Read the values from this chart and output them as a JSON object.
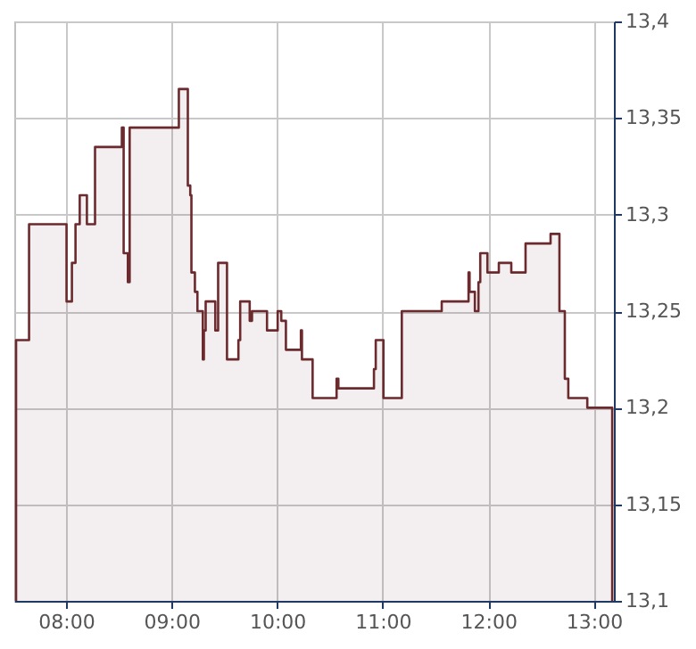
{
  "chart_data": {
    "type": "area",
    "x": [
      7.527,
      7.65,
      8.005,
      8.056,
      8.09,
      8.13,
      8.198,
      8.275,
      8.529,
      8.546,
      8.586,
      8.603,
      9.069,
      9.154,
      9.177,
      9.188,
      9.221,
      9.245,
      9.296,
      9.306,
      9.323,
      9.414,
      9.441,
      9.525,
      9.633,
      9.65,
      9.74,
      9.762,
      9.904,
      10.005,
      10.039,
      10.083,
      10.225,
      10.235,
      10.336,
      10.563,
      10.58,
      10.917,
      10.934,
      11.007,
      11.181,
      11.559,
      11.813,
      11.823,
      11.873,
      11.907,
      11.924,
      11.992,
      12.1,
      12.218,
      12.353,
      12.59,
      12.674,
      12.725,
      12.758,
      12.938,
      13.174
    ],
    "series": [
      {
        "color": "#6b2a2e",
        "values": [
          13.235,
          13.295,
          13.255,
          13.275,
          13.295,
          13.31,
          13.295,
          13.335,
          13.345,
          13.28,
          13.265,
          13.345,
          13.365,
          13.315,
          13.31,
          13.27,
          13.26,
          13.25,
          13.225,
          13.24,
          13.255,
          13.24,
          13.275,
          13.225,
          13.235,
          13.255,
          13.245,
          13.25,
          13.24,
          13.25,
          13.245,
          13.23,
          13.24,
          13.225,
          13.205,
          13.215,
          13.21,
          13.22,
          13.235,
          13.205,
          13.25,
          13.255,
          13.27,
          13.26,
          13.25,
          13.265,
          13.28,
          13.27,
          13.275,
          13.27,
          13.285,
          13.29,
          13.25,
          13.215,
          13.205,
          13.2,
          13.15
        ]
      }
    ],
    "xlim": [
      7.51,
      13.19
    ],
    "xticks": [
      {
        "value": 8,
        "label": "08:00"
      },
      {
        "value": 9,
        "label": "09:00"
      },
      {
        "value": 10,
        "label": "10:00"
      },
      {
        "value": 11,
        "label": "11:00"
      },
      {
        "value": 12,
        "label": "12:00"
      },
      {
        "value": 13,
        "label": "13:00"
      }
    ],
    "ylim": [
      13.1,
      13.4
    ],
    "yticks": [
      {
        "value": 13.1,
        "label": "13,1"
      },
      {
        "value": 13.15,
        "label": "13,15"
      },
      {
        "value": 13.2,
        "label": "13,2"
      },
      {
        "value": 13.25,
        "label": "13,25"
      },
      {
        "value": 13.3,
        "label": "13,3"
      },
      {
        "value": 13.35,
        "label": "13,35"
      },
      {
        "value": 13.4,
        "label": "13,4"
      }
    ],
    "grid": true,
    "marker": "none",
    "line_style": "solid"
  }
}
